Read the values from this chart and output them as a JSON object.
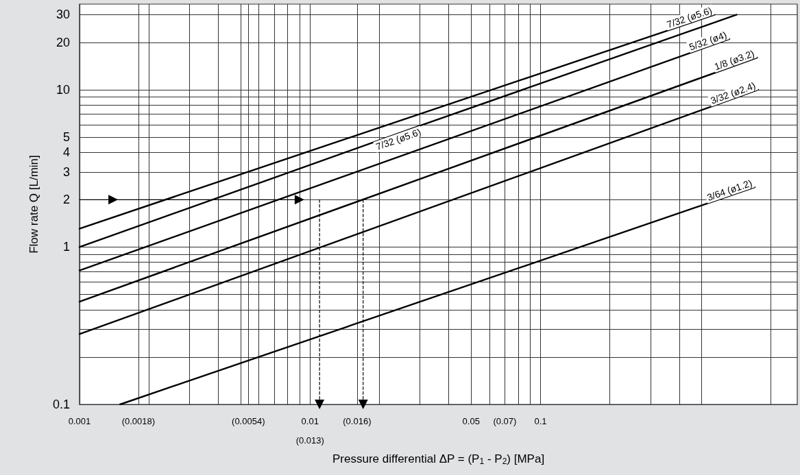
{
  "chart_data": {
    "type": "line",
    "xlabel": "Pressure differential ΔP = (P$_{1}$ - P$_{2}$) [MPa]",
    "ylabel": "Flow rate Q [L/min]",
    "log": "xy",
    "grid": true,
    "legend": false,
    "marker": "none",
    "line_style": "solid",
    "xlim": [
      0.001,
      1.3
    ],
    "ylim": [
      0.1,
      35
    ],
    "xticks": [
      {
        "value": 0.001,
        "label": "0.001"
      },
      {
        "value": 0.0018,
        "label": "(0.0018)"
      },
      {
        "value": 0.002,
        "label": null
      },
      {
        "value": 0.003,
        "label": null
      },
      {
        "value": 0.004,
        "label": null
      },
      {
        "value": 0.005,
        "label": null
      },
      {
        "value": 0.0054,
        "label": "(0.0054)"
      },
      {
        "value": 0.006,
        "label": null
      },
      {
        "value": 0.007,
        "label": null
      },
      {
        "value": 0.008,
        "label": null
      },
      {
        "value": 0.009,
        "label": null
      },
      {
        "value": 0.01,
        "label": "0.01\n(0.013)"
      },
      {
        "value": 0.016,
        "label": "(0.016)"
      },
      {
        "value": 0.02,
        "label": null
      },
      {
        "value": 0.03,
        "label": null
      },
      {
        "value": 0.04,
        "label": null
      },
      {
        "value": 0.05,
        "label": "0.05"
      },
      {
        "value": 0.06,
        "label": null
      },
      {
        "value": 0.07,
        "label": "(0.07)"
      },
      {
        "value": 0.08,
        "label": null
      },
      {
        "value": 0.09,
        "label": null
      },
      0.1,
      {
        "value": 0.2,
        "label": null
      },
      {
        "value": 0.3,
        "label": null
      },
      {
        "value": 0.4,
        "label": null
      },
      {
        "value": 0.5,
        "label": null
      },
      {
        "value": 1,
        "label": null
      }
    ],
    "yticks": [
      0.1,
      {
        "value": 0.2,
        "label": null
      },
      {
        "value": 0.3,
        "label": null
      },
      {
        "value": 0.4,
        "label": null
      },
      {
        "value": 0.5,
        "label": null
      },
      {
        "value": 0.6,
        "label": null
      },
      {
        "value": 0.7,
        "label": null
      },
      {
        "value": 0.8,
        "label": null
      },
      {
        "value": 0.9,
        "label": null
      },
      1,
      2,
      3,
      4,
      5,
      {
        "value": 6,
        "label": null
      },
      {
        "value": 7,
        "label": null
      },
      {
        "value": 8,
        "label": null
      },
      {
        "value": 9,
        "label": null
      },
      10,
      20,
      30
    ],
    "series": [
      {
        "name": "7/32 (ø5.6)",
        "color": "#000000",
        "x": [
          0.001,
          0.57
        ],
        "values": [
          1.31,
          30
        ]
      },
      {
        "name": "7/32 (ø5.6)",
        "color": "#000000",
        "x": [
          0.001,
          0.03,
          0.71
        ],
        "values": [
          1.0,
          5.9,
          30
        ]
      },
      {
        "name": "5/32 (ø4)",
        "color": "#000000",
        "x": [
          0.001,
          0.66
        ],
        "values": [
          0.71,
          21
        ]
      },
      {
        "name": "1/8 (ø3.2)",
        "color": "#000000",
        "x": [
          0.001,
          0.87
        ],
        "values": [
          0.45,
          16
        ]
      },
      {
        "name": "3/32 (ø2.4)",
        "color": "#000000",
        "x": [
          0.001,
          0.88
        ],
        "values": [
          0.28,
          10
        ]
      },
      {
        "name": "3/64 (ø1.2)",
        "color": "#000000",
        "x": [
          0.0015,
          0.85
        ],
        "values": [
          0.1,
          2.4
        ]
      },
      {
        "color": "#000000",
        "marker": "triangle",
        "x": [
          0.001,
          0.0014,
          0.009
        ],
        "values": [
          2,
          2,
          2
        ]
      },
      {
        "color": "#000000",
        "marker": "triangle",
        "line_style": "dashed",
        "x": [
          0.011,
          0.011
        ],
        "values": [
          2,
          0.1
        ]
      },
      {
        "color": "#000000",
        "marker": "triangle",
        "line_style": "dashed",
        "x": [
          0.017,
          0.017
        ],
        "values": [
          2,
          0.1
        ]
      }
    ]
  }
}
